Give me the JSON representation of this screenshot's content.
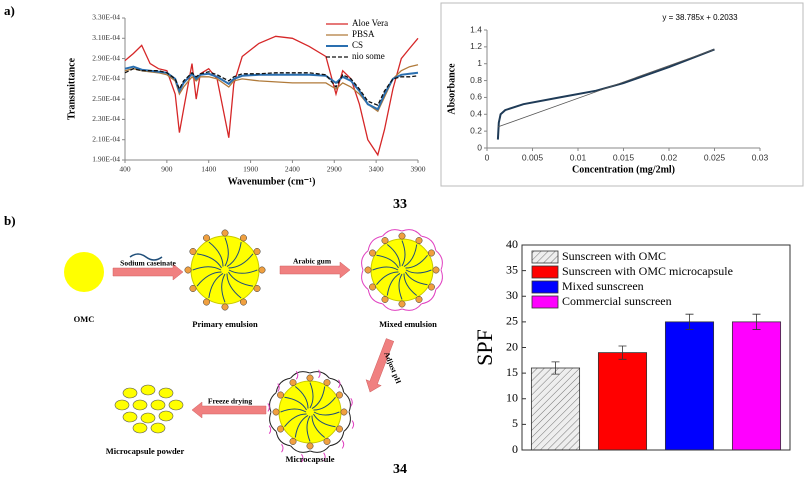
{
  "panel_labels": [
    "a)",
    "b)"
  ],
  "figure_numbers": [
    "33",
    "34"
  ],
  "chart_data": [
    {
      "type": "line",
      "x_label": "Wavenumber (cm⁻¹)",
      "y_label": "Transmittance",
      "x": [
        400,
        500,
        600,
        700,
        800,
        900,
        1000,
        1050,
        1100,
        1200,
        1250,
        1300,
        1400,
        1500,
        1640,
        1700,
        1800,
        2000,
        2200,
        2400,
        2600,
        2800,
        2920,
        3000,
        3100,
        3200,
        3300,
        3420,
        3500,
        3600,
        3700,
        3800,
        3900
      ],
      "xlim": [
        400,
        3900
      ],
      "xticks": [
        400,
        900,
        1400,
        1900,
        2400,
        2900,
        3400,
        3900
      ],
      "ylim": [
        0.00019,
        0.00033
      ],
      "yticks": [
        {
          "value": 0.00019,
          "label": "1.90E-04"
        },
        {
          "value": 0.00021,
          "label": "2.10E-04"
        },
        {
          "value": 0.00023,
          "label": "2.30E-04"
        },
        {
          "value": 0.00025,
          "label": "2.50E-04"
        },
        {
          "value": 0.00027,
          "label": "2.70E-04"
        },
        {
          "value": 0.00029,
          "label": "2.90E-04"
        },
        {
          "value": 0.00031,
          "label": "3.10E-04"
        },
        {
          "value": 0.00033,
          "label": "3.30E-04"
        }
      ],
      "legend": "upper right",
      "series": [
        {
          "name": "Aloe Vera",
          "color": "#d62728",
          "line_width": 1.3,
          "values": [
            0.000288,
            0.000295,
            0.000303,
            0.000285,
            0.00028,
            0.000278,
            0.000255,
            0.000217,
            0.00024,
            0.000285,
            0.00025,
            0.000275,
            0.00028,
            0.00027,
            0.000212,
            0.000265,
            0.000292,
            0.000305,
            0.000312,
            0.00031,
            0.000302,
            0.000292,
            0.000255,
            0.000278,
            0.00027,
            0.000245,
            0.00021,
            0.000195,
            0.00022,
            0.00026,
            0.00029,
            0.0003,
            0.00031
          ]
        },
        {
          "name": "PBSA",
          "color": "#b07a3a",
          "line_width": 1.3,
          "values": [
            0.000278,
            0.00028,
            0.000278,
            0.000277,
            0.000276,
            0.000274,
            0.000268,
            0.000255,
            0.000262,
            0.000272,
            0.000268,
            0.000272,
            0.000272,
            0.00027,
            0.000262,
            0.000268,
            0.00027,
            0.000268,
            0.000267,
            0.000266,
            0.000266,
            0.000266,
            0.00026,
            0.000266,
            0.000262,
            0.000255,
            0.000245,
            0.000238,
            0.000252,
            0.00027,
            0.000278,
            0.000282,
            0.000284
          ]
        },
        {
          "name": "CS",
          "color": "#2a6fb0",
          "line_width": 2,
          "values": [
            0.00028,
            0.000282,
            0.000279,
            0.000278,
            0.000277,
            0.000276,
            0.00027,
            0.000258,
            0.000266,
            0.000275,
            0.00027,
            0.000274,
            0.000275,
            0.000272,
            0.000265,
            0.00027,
            0.000273,
            0.000274,
            0.000274,
            0.000274,
            0.000274,
            0.000273,
            0.000266,
            0.000272,
            0.000268,
            0.000258,
            0.000245,
            0.00024,
            0.000255,
            0.00027,
            0.000274,
            0.000275,
            0.000276
          ]
        },
        {
          "name": "nio some",
          "color": "#111111",
          "line_width": 1.3,
          "dash": true,
          "values": [
            0.000276,
            0.00028,
            0.000278,
            0.000278,
            0.000278,
            0.000276,
            0.00027,
            0.00026,
            0.000268,
            0.000276,
            0.000272,
            0.000275,
            0.000277,
            0.000274,
            0.000268,
            0.000272,
            0.000275,
            0.000275,
            0.000276,
            0.000276,
            0.000276,
            0.000274,
            0.000262,
            0.000274,
            0.00027,
            0.00026,
            0.000248,
            0.000244,
            0.000258,
            0.00027,
            0.000272,
            0.000272,
            0.000273
          ]
        }
      ]
    },
    {
      "type": "line",
      "x_label": "Concentration (mg/2ml)",
      "y_label": "Absorbance",
      "annotation": "y = 38.785x + 0.2033",
      "xlim": [
        0,
        0.03
      ],
      "xticks": [
        0,
        0.005,
        0.01,
        0.015,
        0.02,
        0.025,
        0.03
      ],
      "ylim": [
        0,
        1.4
      ],
      "yticks": [
        0,
        0.2,
        0.4,
        0.6,
        0.8,
        1,
        1.2,
        1.4
      ],
      "series": [
        {
          "color": "#1f3b57",
          "line_width": 2,
          "x": [
            0.0012,
            0.0013,
            0.0015,
            0.002,
            0.004,
            0.008,
            0.012,
            0.015,
            0.02,
            0.025
          ],
          "values": [
            0.1,
            0.3,
            0.4,
            0.45,
            0.52,
            0.6,
            0.68,
            0.77,
            0.96,
            1.17
          ]
        },
        {
          "color": "#555555",
          "line_width": 0.8,
          "x": [
            0.0012,
            0.025
          ],
          "values": [
            0.25,
            1.17
          ]
        }
      ]
    },
    {
      "type": "bar",
      "y_label": "SPF",
      "categories": [
        "Sunscreen with OMC",
        "Sunscreen with OMC microcapsule",
        "Mixed sunscreen",
        "Commercial sunscreen"
      ],
      "values": [
        16,
        19,
        25,
        25
      ],
      "errors": [
        1.2,
        1.3,
        1.5,
        1.5
      ],
      "colors": [
        "#d9d9d9",
        "#ff0000",
        "#0000ff",
        "#ff00ff"
      ],
      "hatch": [
        true,
        false,
        false,
        false
      ],
      "ylim": [
        0,
        40
      ],
      "yticks": [
        0,
        5,
        10,
        15,
        20,
        25,
        30,
        35,
        40
      ],
      "legend": "upper left"
    }
  ],
  "diagram": {
    "nodes": [
      {
        "label": "OMC"
      },
      {
        "label": "Primary emulsion"
      },
      {
        "label": "Mixed emulsion"
      },
      {
        "label": "Microcapsule"
      },
      {
        "label": "Microcapsule powder"
      }
    ],
    "arrows": [
      {
        "label": "Sodium caseinate"
      },
      {
        "label": "Arabic gum"
      },
      {
        "label": "Adjust pH"
      },
      {
        "label": "Freeze drying"
      }
    ]
  }
}
